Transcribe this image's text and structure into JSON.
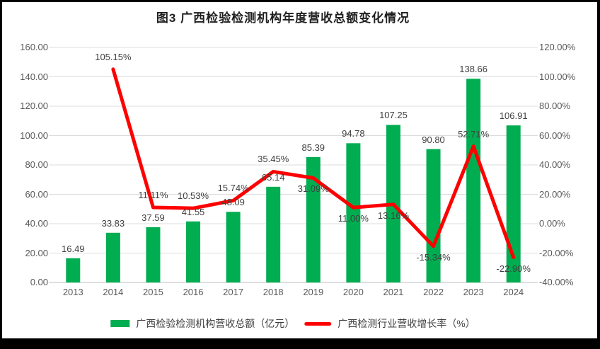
{
  "page": {
    "background": "#ffffff",
    "frame_border_color": "#000000"
  },
  "chart_data": {
    "type": "bar+line combo",
    "title": "图3 广西检验检测机构年度营收总额变化情况",
    "categories": [
      "2013",
      "2014",
      "2015",
      "2016",
      "2017",
      "2018",
      "2019",
      "2020",
      "2021",
      "2022",
      "2023",
      "2024"
    ],
    "series": [
      {
        "name": "广西检验检测机构营收总额（亿元）",
        "type": "bar",
        "axis": "left",
        "color": "#00AD50",
        "values": [
          16.49,
          33.83,
          37.59,
          41.55,
          48.09,
          65.14,
          85.39,
          94.78,
          107.25,
          90.8,
          138.66,
          106.91
        ],
        "labels": [
          "16.49",
          "33.83",
          "37.59",
          "41.55",
          "48.09",
          "65.14",
          "85.39",
          "94.78",
          "107.25",
          "90.80",
          "138.66",
          "106.91"
        ]
      },
      {
        "name": "广西检测行业营收增长率（%）",
        "type": "line",
        "axis": "right",
        "color": "#FE0000",
        "values": [
          null,
          105.15,
          11.11,
          10.53,
          15.74,
          35.45,
          31.09,
          11.0,
          13.16,
          -15.34,
          52.71,
          -22.9
        ],
        "labels": [
          "",
          "105.15%",
          "11.11%",
          "10.53%",
          "15.74%",
          "35.45%",
          "31.09%",
          "11.00%",
          "13.16%",
          "-15.34%",
          "52.71%",
          "-22.90%"
        ],
        "label_placement": [
          "",
          "above",
          "above",
          "above",
          "above",
          "above",
          "below",
          "below",
          "below",
          "below",
          "above",
          "below"
        ]
      }
    ],
    "left_axis": {
      "min": 0,
      "max": 160,
      "step": 20,
      "tick_labels_top_to_bottom": [
        "160.00",
        "140.00",
        "120.00",
        "100.00",
        "80.00",
        "60.00",
        "40.00",
        "20.00",
        "0.00"
      ]
    },
    "right_axis": {
      "min": -40,
      "max": 120,
      "step": 20,
      "tick_labels_top_to_bottom": [
        "120.00%",
        "100.00%",
        "80.00%",
        "60.00%",
        "40.00%",
        "20.00%",
        "0.00%",
        "-20.00%",
        "-40.00%"
      ]
    },
    "grid": true,
    "legend_position": "bottom",
    "colors": {
      "grid": "#DCDCDC",
      "axis_line": "#BFBFBF",
      "axis_text": "#595959",
      "data_label": "#404040"
    }
  }
}
